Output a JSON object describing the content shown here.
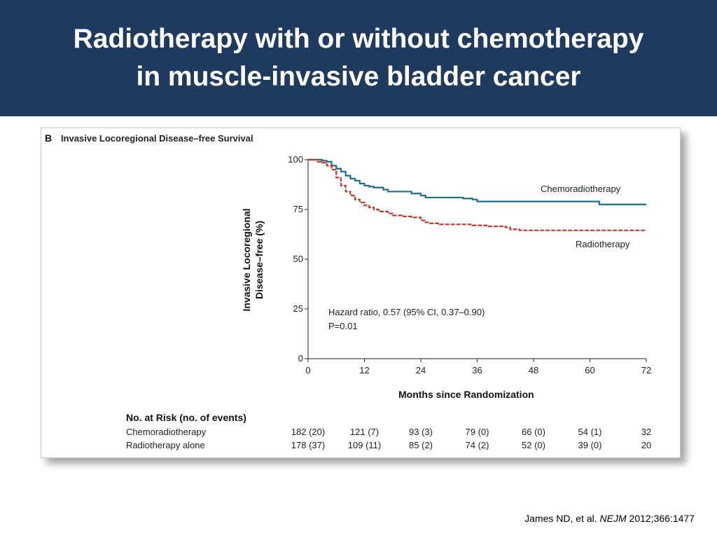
{
  "slide": {
    "title_line1": "Radiotherapy with or without chemotherapy",
    "title_line2": "in muscle-invasive bladder cancer",
    "citation_prefix": "James ND, et al. ",
    "citation_journal": "NEJM",
    "citation_suffix": " 2012;366:1477"
  },
  "chart_data": {
    "type": "line",
    "panel_letter": "B",
    "title": "Invasive Locoregional Disease–free Survival",
    "xlabel": "Months since Randomization",
    "ylabel_line1": "Invasive Locoregional",
    "ylabel_line2": "Disease–free (%)",
    "xlim": [
      0,
      72
    ],
    "ylim": [
      0,
      100
    ],
    "xticks": [
      0,
      12,
      24,
      36,
      48,
      60,
      72
    ],
    "yticks": [
      0,
      25,
      50,
      75,
      100
    ],
    "grid": false,
    "annotation_line1": "Hazard ratio, 0.57 (95% CI, 0.37–0.90)",
    "annotation_line2": "P=0.01",
    "series": [
      {
        "name": "Chemoradiotherapy",
        "color": "#1f6f8b",
        "style": "solid",
        "points": [
          [
            0,
            100
          ],
          [
            3,
            99.5
          ],
          [
            4,
            99
          ],
          [
            5,
            97
          ],
          [
            6,
            95.5
          ],
          [
            7,
            94
          ],
          [
            8,
            92
          ],
          [
            9,
            90.5
          ],
          [
            10,
            89.5
          ],
          [
            11,
            88
          ],
          [
            12,
            87
          ],
          [
            13,
            86.5
          ],
          [
            14,
            86
          ],
          [
            16,
            85
          ],
          [
            17,
            84
          ],
          [
            20,
            84
          ],
          [
            22,
            83
          ],
          [
            24,
            82
          ],
          [
            25,
            81
          ],
          [
            30,
            81
          ],
          [
            33,
            80.5
          ],
          [
            35,
            80
          ],
          [
            36,
            79
          ],
          [
            45,
            79
          ],
          [
            50,
            79
          ],
          [
            55,
            79
          ],
          [
            61,
            79
          ],
          [
            62,
            77.5
          ],
          [
            65,
            77.5
          ],
          [
            72,
            77.5
          ]
        ]
      },
      {
        "name": "Radiotherapy",
        "color": "#c0392b",
        "style": "dashed",
        "points": [
          [
            0,
            100
          ],
          [
            2,
            99
          ],
          [
            3,
            98.5
          ],
          [
            4,
            97
          ],
          [
            5,
            95
          ],
          [
            6,
            91
          ],
          [
            7,
            87
          ],
          [
            8,
            84
          ],
          [
            9,
            82
          ],
          [
            10,
            80
          ],
          [
            11,
            78.5
          ],
          [
            12,
            77
          ],
          [
            13,
            76
          ],
          [
            14,
            75
          ],
          [
            15,
            74
          ],
          [
            17,
            73
          ],
          [
            18,
            72
          ],
          [
            20,
            71.5
          ],
          [
            22,
            71
          ],
          [
            24,
            69.5
          ],
          [
            25,
            68.5
          ],
          [
            26,
            68
          ],
          [
            28,
            67.5
          ],
          [
            30,
            67.5
          ],
          [
            35,
            67
          ],
          [
            38,
            66.5
          ],
          [
            42,
            66
          ],
          [
            43,
            65
          ],
          [
            45,
            64.5
          ],
          [
            50,
            64.5
          ],
          [
            60,
            64.5
          ],
          [
            72,
            64.5
          ]
        ]
      }
    ],
    "risk_table": {
      "title": "No. at Risk (no. of events)",
      "rows": [
        {
          "label": "Chemoradiotherapy",
          "values": [
            "182 (20)",
            "121 (7)",
            "93 (3)",
            "79 (0)",
            "66 (0)",
            "54 (1)",
            "32"
          ]
        },
        {
          "label": "Radiotherapy alone",
          "values": [
            "178 (37)",
            "109 (11)",
            "85 (2)",
            "74 (2)",
            "52 (0)",
            "39 (0)",
            "20"
          ]
        }
      ]
    }
  }
}
